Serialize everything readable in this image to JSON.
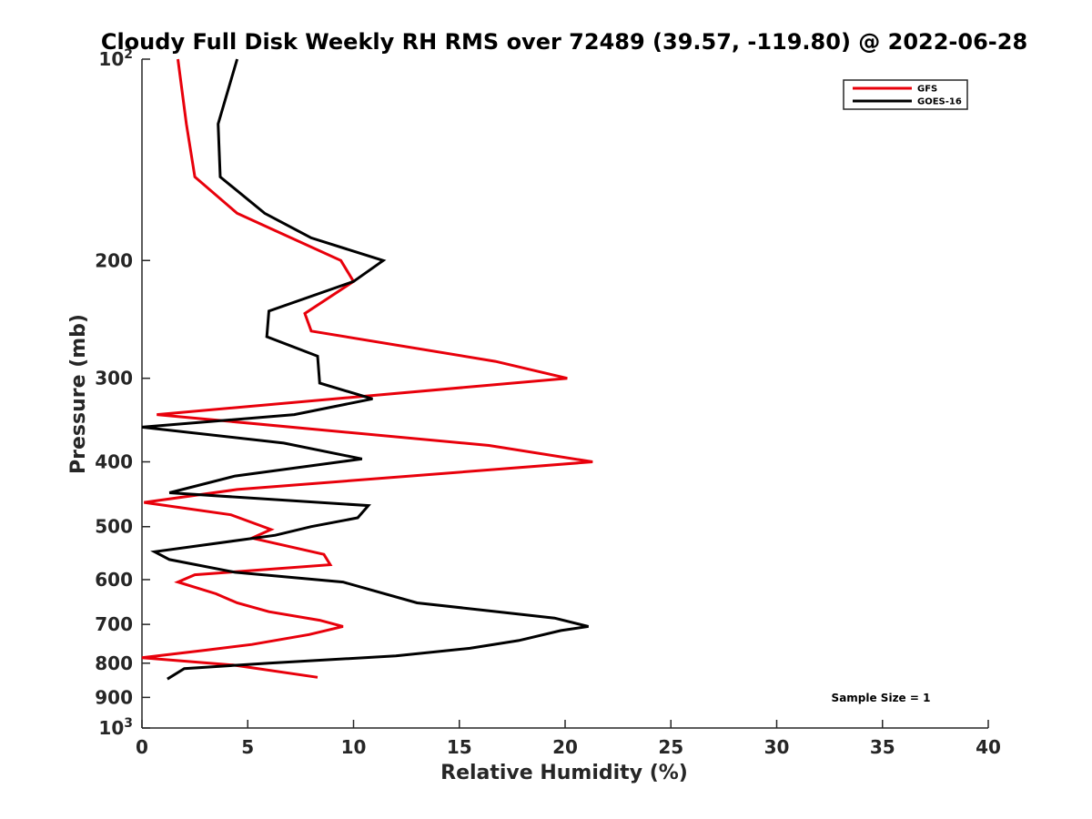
{
  "chart_data": {
    "type": "line",
    "title": "Cloudy Full Disk Weekly RH RMS over 72489 (39.57, -119.80) @ 2022-06-28",
    "xlabel": "Relative Humidity (%)",
    "ylabel": "Pressure (mb)",
    "xlim": [
      0,
      40
    ],
    "ylim": [
      100,
      1000
    ],
    "y_scale": "log",
    "y_reversed": true,
    "x_ticks": [
      "0",
      "5",
      "10",
      "15",
      "20",
      "25",
      "30",
      "35",
      "40"
    ],
    "x_tick_values": [
      0,
      5,
      10,
      15,
      20,
      25,
      30,
      35,
      40
    ],
    "y_tick_values": [
      100,
      200,
      300,
      400,
      500,
      600,
      700,
      800,
      900,
      1000
    ],
    "y_ticks": [
      {
        "base": "10",
        "exp": "2"
      },
      {
        "base": "200",
        "exp": ""
      },
      {
        "base": "300",
        "exp": ""
      },
      {
        "base": "400",
        "exp": ""
      },
      {
        "base": "500",
        "exp": ""
      },
      {
        "base": "600",
        "exp": ""
      },
      {
        "base": "700",
        "exp": ""
      },
      {
        "base": "800",
        "exp": ""
      },
      {
        "base": "900",
        "exp": ""
      },
      {
        "base": "10",
        "exp": "3"
      }
    ],
    "legend_position": "top-right",
    "grid": false,
    "annotation": "Sample Size = 1",
    "series": [
      {
        "name": "GFS",
        "color": "#e8000b",
        "points": [
          [
            1.7,
            100
          ],
          [
            2.1,
            125
          ],
          [
            2.5,
            150
          ],
          [
            4.5,
            170
          ],
          [
            9.4,
            200
          ],
          [
            10.0,
            215
          ],
          [
            7.7,
            240
          ],
          [
            8.0,
            255
          ],
          [
            16.7,
            283
          ],
          [
            20.1,
            300
          ],
          [
            0.7,
            340
          ],
          [
            16.4,
            378
          ],
          [
            21.3,
            400
          ],
          [
            4.5,
            440
          ],
          [
            0.1,
            460
          ],
          [
            4.2,
            480
          ],
          [
            6.1,
            505
          ],
          [
            5.2,
            520
          ],
          [
            8.6,
            550
          ],
          [
            8.9,
            570
          ],
          [
            2.5,
            590
          ],
          [
            1.7,
            605
          ],
          [
            3.5,
            630
          ],
          [
            4.5,
            650
          ],
          [
            6.0,
            670
          ],
          [
            8.4,
            690
          ],
          [
            9.5,
            705
          ],
          [
            7.9,
            725
          ],
          [
            5.2,
            750
          ],
          [
            3.0,
            765
          ],
          [
            0.0,
            785
          ],
          [
            4.3,
            805
          ],
          [
            8.3,
            840
          ]
        ]
      },
      {
        "name": "GOES-16",
        "color": "#000000",
        "points": [
          [
            4.5,
            100
          ],
          [
            3.6,
            125
          ],
          [
            3.7,
            150
          ],
          [
            5.8,
            170
          ],
          [
            8.0,
            185
          ],
          [
            11.4,
            200
          ],
          [
            10.0,
            215
          ],
          [
            6.0,
            238
          ],
          [
            5.9,
            260
          ],
          [
            8.3,
            278
          ],
          [
            8.4,
            305
          ],
          [
            10.9,
            322
          ],
          [
            7.2,
            340
          ],
          [
            0.0,
            355
          ],
          [
            6.7,
            375
          ],
          [
            10.4,
            396
          ],
          [
            4.4,
            420
          ],
          [
            1.3,
            445
          ],
          [
            10.7,
            465
          ],
          [
            10.2,
            485
          ],
          [
            8.0,
            500
          ],
          [
            6.3,
            515
          ],
          [
            0.6,
            545
          ],
          [
            1.3,
            560
          ],
          [
            4.4,
            585
          ],
          [
            9.5,
            605
          ],
          [
            10.7,
            620
          ],
          [
            13.0,
            650
          ],
          [
            16.8,
            670
          ],
          [
            19.5,
            685
          ],
          [
            21.1,
            705
          ],
          [
            19.8,
            715
          ],
          [
            17.8,
            740
          ],
          [
            15.5,
            760
          ],
          [
            12.0,
            780
          ],
          [
            6.0,
            800
          ],
          [
            2.0,
            815
          ],
          [
            1.2,
            845
          ]
        ]
      }
    ]
  }
}
